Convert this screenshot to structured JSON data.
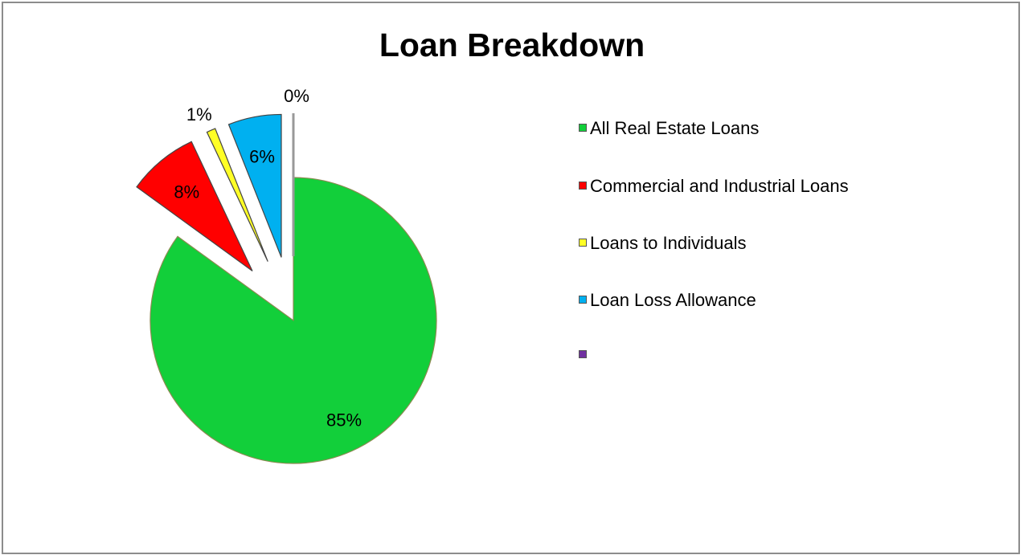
{
  "chart_data": {
    "type": "pie",
    "title": "Loan Breakdown",
    "slices": [
      {
        "label": "All Real Estate Loans",
        "value": 85,
        "value_label": "85%",
        "color": "#12cf3a",
        "exploded": false
      },
      {
        "label": "Commercial and Industrial Loans",
        "value": 8,
        "value_label": "8%",
        "color": "#ff0000",
        "exploded": true
      },
      {
        "label": "Loans to Individuals",
        "value": 1,
        "value_label": "1%",
        "color": "#ffff26",
        "exploded": true
      },
      {
        "label": "Loan Loss Allowance",
        "value": 6,
        "value_label": "6%",
        "color": "#00b0f0",
        "exploded": true
      },
      {
        "label": "",
        "value": 0,
        "value_label": "0%",
        "color": "#7030a0",
        "exploded": true
      }
    ],
    "legend_position": "right",
    "start_angle_deg": 0,
    "direction": "clockwise"
  }
}
